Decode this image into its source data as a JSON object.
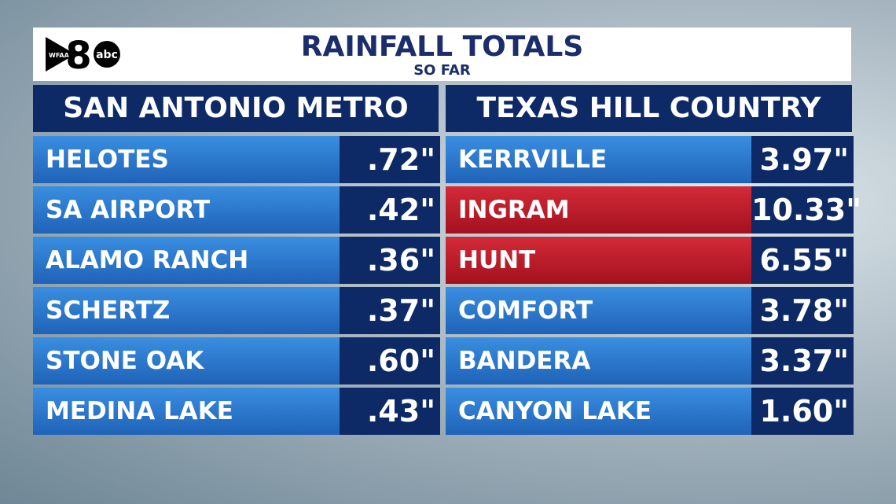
{
  "logo": {
    "station": "WFAA",
    "channel": "8",
    "network": "abc"
  },
  "header": {
    "title": "RAINFALL TOTALS",
    "subtitle": "SO FAR"
  },
  "tables": [
    {
      "heading": "SAN ANTONIO METRO",
      "rows": [
        {
          "place": "HELOTES",
          "rain": ".72\""
        },
        {
          "place": "SA AIRPORT",
          "rain": ".42\""
        },
        {
          "place": "ALAMO RANCH",
          "rain": ".36\""
        },
        {
          "place": "SCHERTZ",
          "rain": ".37\""
        },
        {
          "place": "STONE OAK",
          "rain": ".60\""
        },
        {
          "place": "MEDINA LAKE",
          "rain": ".43\""
        }
      ]
    },
    {
      "heading": "TEXAS HILL COUNTRY",
      "rows": [
        {
          "place": "KERRVILLE",
          "rain": "3.97\""
        },
        {
          "place": "INGRAM",
          "rain": "10.33\"",
          "highlight": true
        },
        {
          "place": "HUNT",
          "rain": "6.55\"",
          "highlight": true
        },
        {
          "place": "COMFORT",
          "rain": "3.78\""
        },
        {
          "place": "BANDERA",
          "rain": "3.37\""
        },
        {
          "place": "CANYON LAKE",
          "rain": "1.60\""
        }
      ]
    }
  ]
}
